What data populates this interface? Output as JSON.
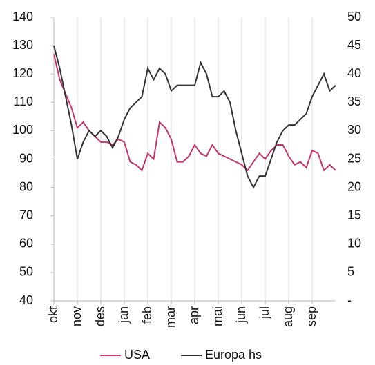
{
  "chart_data": {
    "type": "line",
    "x": [
      0,
      0.25,
      0.5,
      0.75,
      1,
      1.25,
      1.5,
      1.75,
      2,
      2.25,
      2.5,
      2.75,
      3,
      3.25,
      3.5,
      3.75,
      4,
      4.25,
      4.5,
      4.75,
      5,
      5.25,
      5.5,
      5.75,
      6,
      6.25,
      6.5,
      6.75,
      7,
      7.25,
      7.5,
      7.75,
      8,
      8.25,
      8.5,
      8.75,
      9,
      9.25,
      9.5,
      9.75,
      10,
      10.25,
      10.5,
      10.75,
      11,
      11.25,
      11.5,
      11.75,
      12
    ],
    "xlim": [
      0,
      12
    ],
    "xticks": [
      {
        "value": 0,
        "label": "okt"
      },
      {
        "value": 1,
        "label": "nov"
      },
      {
        "value": 2,
        "label": "des"
      },
      {
        "value": 3,
        "label": "jan"
      },
      {
        "value": 4,
        "label": "feb"
      },
      {
        "value": 5,
        "label": "mar"
      },
      {
        "value": 6,
        "label": "apr"
      },
      {
        "value": 7,
        "label": "mai"
      },
      {
        "value": 8,
        "label": "jun"
      },
      {
        "value": 9,
        "label": "jul"
      },
      {
        "value": 10,
        "label": "aug"
      },
      {
        "value": 11,
        "label": "sep"
      }
    ],
    "ylim": [
      40,
      140
    ],
    "yticks": [
      40,
      50,
      60,
      70,
      80,
      90,
      100,
      110,
      120,
      130,
      140
    ],
    "y2lim": [
      0,
      50
    ],
    "y2ticks": [
      {
        "value": 0,
        "label": "-"
      },
      5,
      10,
      15,
      20,
      25,
      30,
      35,
      40,
      45,
      50
    ],
    "grid": true,
    "legend": "bottom",
    "series": [
      {
        "name": "USA",
        "color": "#c8336e",
        "values": [
          127,
          118,
          113,
          108,
          101,
          103,
          100,
          98,
          96,
          96,
          95,
          97,
          96,
          89,
          88,
          86,
          92,
          90,
          103,
          101,
          97,
          89,
          89,
          91,
          95,
          92,
          91,
          95,
          92,
          91,
          90,
          89,
          88,
          86,
          89,
          92,
          90,
          93,
          95,
          95,
          91,
          88,
          89,
          87,
          93,
          92,
          86,
          88,
          86
        ]
      },
      {
        "name": "Europa hs",
        "color": "#333333",
        "axis": "y2",
        "values": [
          45,
          41,
          36,
          31,
          25,
          28,
          30,
          29,
          30,
          29,
          27,
          29,
          32,
          34,
          35,
          36,
          41,
          39,
          41,
          40,
          37,
          38,
          38,
          38,
          38,
          42,
          40,
          36,
          36,
          37,
          35,
          30,
          26,
          22,
          20,
          22,
          22,
          25,
          28,
          30,
          31,
          31,
          32,
          33,
          36,
          38,
          40,
          37,
          38
        ]
      }
    ]
  }
}
